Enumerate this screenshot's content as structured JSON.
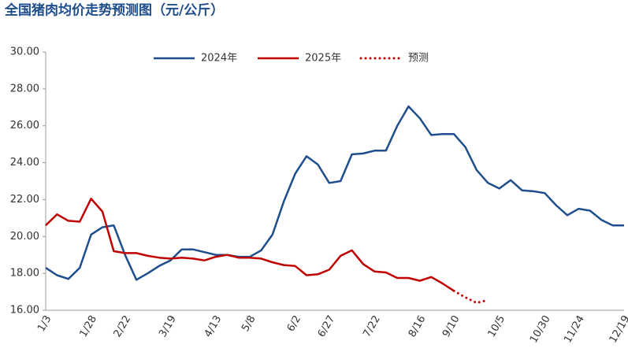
{
  "chart_data": {
    "type": "line",
    "title": "全国猪肉均价走势预测图（元/公斤）",
    "categories": [
      "1/3",
      null,
      null,
      null,
      "1/28",
      null,
      null,
      "2/22",
      null,
      null,
      null,
      "3/19",
      null,
      null,
      null,
      "4/13",
      null,
      null,
      "5/8",
      null,
      null,
      null,
      "6/2",
      null,
      null,
      "6/27",
      null,
      null,
      null,
      "7/22",
      null,
      null,
      null,
      "8/16",
      null,
      null,
      "9/10",
      null,
      null,
      null,
      "10/5",
      null,
      null,
      null,
      "10/30",
      null,
      null,
      "11/24",
      null,
      null,
      null,
      "12/19"
    ],
    "series": [
      {
        "name": "2024年",
        "color": "#1f4e8c",
        "style": "solid",
        "values": [
          18.3,
          17.9,
          17.7,
          18.3,
          20.1,
          20.5,
          20.6,
          19.0,
          17.65,
          18.0,
          18.4,
          18.7,
          19.3,
          19.3,
          19.15,
          19.0,
          19.0,
          18.9,
          18.9,
          19.25,
          20.1,
          21.9,
          23.4,
          24.35,
          23.9,
          22.9,
          23.0,
          24.45,
          24.5,
          24.65,
          24.65,
          26.0,
          27.05,
          26.4,
          25.5,
          25.55,
          25.55,
          24.85,
          23.6,
          22.9,
          22.6,
          23.05,
          22.5,
          22.45,
          22.35,
          21.7,
          21.15,
          21.5,
          21.4,
          20.9,
          20.6,
          20.6
        ]
      },
      {
        "name": "2025年",
        "color": "#c00000",
        "style": "solid",
        "values": [
          20.6,
          21.2,
          20.85,
          20.8,
          22.05,
          21.35,
          19.2,
          19.1,
          19.1,
          18.95,
          18.85,
          18.8,
          18.85,
          18.8,
          18.7,
          18.9,
          19.0,
          18.85,
          18.85,
          18.8,
          18.6,
          18.45,
          18.4,
          17.9,
          17.95,
          18.2,
          18.95,
          19.25,
          18.5,
          18.1,
          18.05,
          17.75,
          17.75,
          17.6,
          17.8,
          17.45,
          17.05,
          null,
          null,
          null,
          null,
          null,
          null,
          null,
          null,
          null,
          null,
          null,
          null,
          null,
          null,
          null
        ]
      },
      {
        "name": "预测",
        "color": "#c00000",
        "style": "dotted",
        "values": [
          null,
          null,
          null,
          null,
          null,
          null,
          null,
          null,
          null,
          null,
          null,
          null,
          null,
          null,
          null,
          null,
          null,
          null,
          null,
          null,
          null,
          null,
          null,
          null,
          null,
          null,
          null,
          null,
          null,
          null,
          null,
          null,
          null,
          null,
          null,
          null,
          17.05,
          16.7,
          16.4,
          16.55,
          null,
          null,
          null,
          null,
          null,
          null,
          null,
          null,
          null,
          null,
          null,
          null
        ]
      }
    ],
    "ylim": [
      16,
      30
    ],
    "yticks": [
      {
        "value": 16,
        "label": "16.00"
      },
      {
        "value": 18,
        "label": "18.00"
      },
      {
        "value": 20,
        "label": "20.00"
      },
      {
        "value": 22,
        "label": "22.00"
      },
      {
        "value": 24,
        "label": "24.00"
      },
      {
        "value": 26,
        "label": "26.00"
      },
      {
        "value": 28,
        "label": "28.00"
      },
      {
        "value": 30,
        "label": "30.00"
      }
    ],
    "legend": "top"
  }
}
